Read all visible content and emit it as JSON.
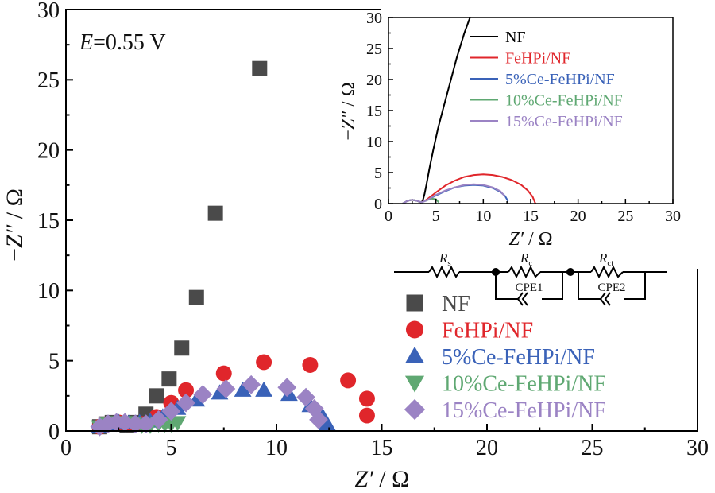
{
  "chart_data": [
    {
      "type": "scatter",
      "annotation": {
        "symbol": "E",
        "value": "=0.55 V"
      },
      "xlabel": {
        "symbol": "Z′",
        "unit": " / Ω"
      },
      "ylabel": {
        "prefix": "−",
        "symbol": "Z″",
        "unit": " / Ω"
      },
      "xlim": [
        0,
        30
      ],
      "ylim": [
        0,
        30
      ],
      "xticks": [
        "0",
        "5",
        "10",
        "15",
        "20",
        "25",
        "30"
      ],
      "yticks": [
        "0",
        "5",
        "10",
        "15",
        "20",
        "25",
        "30"
      ],
      "grid": false,
      "legend_position": "bottom-right",
      "series": [
        {
          "name": "NF",
          "color": "#4a4a4a",
          "marker": "square",
          "x": [
            1.6,
            1.9,
            2.2,
            2.5,
            2.9,
            3.3,
            3.8,
            4.3,
            4.9,
            5.5,
            6.2,
            7.1,
            9.2
          ],
          "y": [
            0.3,
            0.5,
            0.6,
            0.5,
            0.4,
            0.6,
            1.2,
            2.5,
            3.7,
            5.9,
            9.5,
            15.5,
            25.8
          ]
        },
        {
          "name": "FeHPi/NF",
          "color": "#e0262b",
          "marker": "circle",
          "x": [
            1.6,
            2.0,
            2.5,
            3.0,
            3.6,
            4.3,
            5.0,
            5.7,
            7.5,
            9.4,
            11.6,
            13.4,
            14.3,
            14.3
          ],
          "y": [
            0.3,
            0.5,
            0.6,
            0.5,
            0.5,
            1.0,
            2.0,
            2.9,
            4.1,
            4.9,
            4.7,
            3.6,
            2.3,
            1.1
          ]
        },
        {
          "name": "5%Ce-FeHPi/NF",
          "color": "#3a62b8",
          "marker": "triangle-up",
          "x": [
            1.6,
            2.0,
            2.5,
            3.0,
            3.5,
            4.0,
            4.6,
            5.3,
            6.2,
            7.3,
            8.4,
            9.4,
            10.6,
            11.6,
            12.2,
            12.4
          ],
          "y": [
            0.3,
            0.5,
            0.6,
            0.6,
            0.6,
            0.7,
            1.0,
            1.6,
            2.2,
            2.7,
            2.9,
            2.9,
            2.6,
            1.8,
            1.0,
            0.5
          ]
        },
        {
          "name": "10%Ce-FeHPi/NF",
          "color": "#5fa872",
          "marker": "triangle-down",
          "x": [
            1.6,
            2.0,
            2.4,
            2.8,
            3.2,
            3.6,
            4.0,
            4.4,
            4.7,
            5.0,
            5.3
          ],
          "y": [
            0.3,
            0.5,
            0.6,
            0.6,
            0.5,
            0.4,
            0.4,
            0.5,
            0.5,
            0.5,
            0.6
          ]
        },
        {
          "name": "15%Ce-FeHPi/NF",
          "color": "#9b83c4",
          "marker": "diamond",
          "x": [
            1.6,
            2.0,
            2.4,
            2.8,
            3.3,
            3.8,
            4.4,
            5.0,
            5.7,
            6.5,
            7.6,
            8.8,
            10.5,
            11.4,
            11.8,
            12.0
          ],
          "y": [
            0.3,
            0.5,
            0.6,
            0.6,
            0.5,
            0.5,
            0.8,
            1.4,
            2.0,
            2.6,
            3.0,
            3.3,
            3.1,
            2.4,
            1.6,
            0.8
          ]
        }
      ]
    },
    {
      "type": "line",
      "inset": true,
      "xlabel": {
        "symbol": "Z′",
        "unit": " / Ω"
      },
      "ylabel": {
        "prefix": "−",
        "symbol": "Z″",
        "unit": " / Ω"
      },
      "xlim": [
        0,
        30
      ],
      "ylim": [
        0,
        30
      ],
      "xticks": [
        "0",
        "5",
        "10",
        "15",
        "20",
        "25",
        "30"
      ],
      "yticks": [
        "0",
        "5",
        "10",
        "15",
        "20",
        "25",
        "30"
      ],
      "grid": false,
      "legend_position": "top-right",
      "series": [
        {
          "name": "NF",
          "color": "#000000",
          "x": [
            1.5,
            2.0,
            2.5,
            3.0,
            3.4,
            3.6,
            3.8,
            4.0,
            4.3,
            4.7,
            5.2,
            5.8,
            6.5,
            7.2,
            8.0,
            8.6
          ],
          "y": [
            0.0,
            0.45,
            0.6,
            0.45,
            0.2,
            0.4,
            1.5,
            3.0,
            5.5,
            8.5,
            12.0,
            15.5,
            19.5,
            23.5,
            27.5,
            30.0
          ]
        },
        {
          "name": "FeHPi/NF",
          "color": "#e0262b",
          "x": [
            1.5,
            2.0,
            2.5,
            3.0,
            3.5,
            4.0,
            5.0,
            6.0,
            7.0,
            8.0,
            9.0,
            10.0,
            11.0,
            12.0,
            13.0,
            14.0,
            14.7,
            15.2,
            15.5
          ],
          "y": [
            0.0,
            0.45,
            0.6,
            0.45,
            0.2,
            0.6,
            1.8,
            2.9,
            3.7,
            4.3,
            4.6,
            4.7,
            4.6,
            4.3,
            3.8,
            3.0,
            2.1,
            1.1,
            0.0
          ]
        },
        {
          "name": "5%Ce-FeHPi/NF",
          "color": "#3a62b8",
          "x": [
            1.5,
            2.0,
            2.5,
            3.0,
            3.5,
            4.0,
            5.0,
            6.0,
            7.0,
            8.0,
            9.0,
            10.0,
            11.0,
            11.8,
            12.3,
            12.6
          ],
          "y": [
            0.0,
            0.45,
            0.6,
            0.45,
            0.2,
            0.5,
            1.3,
            2.0,
            2.6,
            2.9,
            3.0,
            2.9,
            2.5,
            1.9,
            1.2,
            0.4
          ]
        },
        {
          "name": "10%Ce-FeHPi/NF",
          "color": "#5fa872",
          "x": [
            1.5,
            2.0,
            2.5,
            3.0,
            3.5,
            4.0,
            4.5,
            5.0,
            5.3
          ],
          "y": [
            0.0,
            0.45,
            0.6,
            0.45,
            0.2,
            0.5,
            0.8,
            0.7,
            0.2
          ]
        },
        {
          "name": "15%Ce-FeHPi/NF",
          "color": "#9b83c4",
          "x": [
            1.5,
            2.0,
            2.5,
            3.0,
            3.5,
            4.0,
            5.0,
            6.0,
            7.0,
            8.0,
            9.0,
            10.0,
            11.0,
            11.8,
            12.3
          ],
          "y": [
            0.0,
            0.45,
            0.6,
            0.45,
            0.2,
            0.5,
            1.4,
            2.1,
            2.6,
            3.0,
            3.1,
            3.0,
            2.6,
            2.0,
            1.1
          ]
        }
      ]
    }
  ],
  "circuit": {
    "labels": [
      {
        "main": "R",
        "sub": "s"
      },
      {
        "main": "R",
        "sub": "c"
      },
      {
        "main": "R",
        "sub": "ct"
      }
    ],
    "cpe1": "CPE1",
    "cpe2": "CPE2"
  }
}
